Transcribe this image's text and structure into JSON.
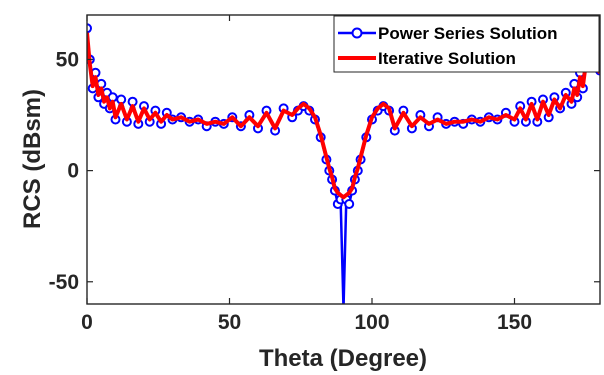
{
  "chart_data": {
    "type": "line",
    "xlabel": "Theta (Degree)",
    "ylabel": "RCS (dBsm)",
    "xlim": [
      0,
      180
    ],
    "ylim": [
      -60,
      70
    ],
    "xticks": [
      0,
      50,
      100,
      150
    ],
    "yticks": [
      -50,
      0,
      50
    ],
    "grid": false,
    "legend_position": "top-right",
    "series": [
      {
        "name": "Power Series Solution",
        "color": "#0000ff",
        "marker": "circle",
        "x": [
          0,
          1,
          2,
          3,
          4,
          5,
          6,
          7,
          8,
          9,
          10,
          12,
          14,
          16,
          18,
          20,
          22,
          24,
          26,
          28,
          30,
          33,
          36,
          39,
          42,
          45,
          48,
          51,
          54,
          57,
          60,
          63,
          66,
          69,
          72,
          74,
          76,
          78,
          80,
          82,
          84,
          85,
          86,
          87,
          88,
          89,
          90,
          91,
          92,
          93,
          94,
          95,
          96,
          98,
          100,
          102,
          104,
          106,
          108,
          111,
          114,
          117,
          120,
          123,
          126,
          129,
          132,
          135,
          138,
          141,
          144,
          147,
          150,
          152,
          154,
          156,
          158,
          160,
          162,
          164,
          166,
          168,
          170,
          171,
          172,
          173,
          174,
          175,
          176,
          177,
          178,
          179,
          180
        ],
        "y": [
          64,
          50,
          37,
          44,
          33,
          39,
          30,
          35,
          28,
          33,
          23,
          32,
          22,
          31,
          21,
          29,
          22,
          27,
          21,
          26,
          23,
          24,
          22,
          23,
          20,
          22,
          21,
          24,
          20,
          25,
          19,
          27,
          18,
          28,
          24,
          27,
          29,
          27,
          23,
          15,
          5,
          0,
          -4,
          -9,
          -15,
          -13,
          -62,
          -13,
          -15,
          -9,
          -4,
          0,
          5,
          15,
          23,
          27,
          29,
          27,
          18,
          27,
          19,
          25,
          20,
          24,
          21,
          22,
          21,
          23,
          22,
          24,
          23,
          26,
          22,
          29,
          22,
          31,
          22,
          32,
          24,
          33,
          28,
          35,
          30,
          39,
          33,
          44,
          37,
          50,
          64,
          58,
          52,
          47,
          45
        ]
      },
      {
        "name": "Iterative Solution",
        "color": "#ff0000",
        "marker": "none",
        "x": [
          0,
          1,
          2,
          3,
          4,
          5,
          6,
          7,
          8,
          9,
          10,
          12,
          14,
          16,
          18,
          20,
          22,
          24,
          26,
          28,
          30,
          33,
          36,
          39,
          42,
          45,
          48,
          51,
          54,
          57,
          60,
          63,
          66,
          69,
          72,
          74,
          76,
          78,
          80,
          82,
          84,
          85,
          86,
          87,
          88,
          89,
          90,
          91,
          92,
          93,
          94,
          95,
          96,
          98,
          100,
          102,
          104,
          106,
          108,
          111,
          114,
          117,
          120,
          123,
          126,
          129,
          132,
          135,
          138,
          141,
          144,
          147,
          150,
          152,
          154,
          156,
          158,
          160,
          162,
          164,
          166,
          168,
          170,
          171,
          172,
          173,
          174,
          175,
          176,
          177,
          178,
          179,
          180
        ],
        "y": [
          62,
          48,
          38,
          42,
          34,
          37,
          31,
          33,
          28,
          31,
          24,
          30,
          23,
          29,
          22,
          28,
          23,
          26,
          22,
          25,
          23,
          24,
          22,
          23,
          21,
          22,
          21,
          24,
          20,
          24,
          20,
          26,
          19,
          27,
          25,
          28,
          30,
          28,
          24,
          16,
          6,
          1,
          -3,
          -8,
          -10,
          -11,
          -12,
          -11,
          -10,
          -8,
          -3,
          1,
          6,
          16,
          24,
          28,
          30,
          28,
          19,
          26,
          20,
          24,
          21,
          23,
          21,
          22,
          22,
          23,
          22,
          24,
          23,
          25,
          23,
          28,
          23,
          30,
          23,
          31,
          25,
          32,
          28,
          34,
          31,
          37,
          34,
          42,
          38,
          48,
          62,
          57,
          51,
          46,
          44
        ]
      }
    ]
  }
}
